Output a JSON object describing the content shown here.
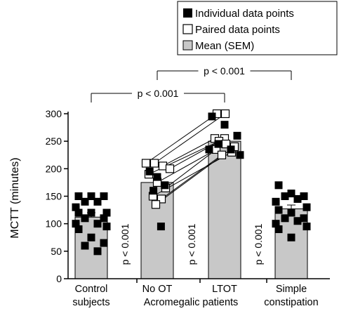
{
  "chart_data": {
    "type": "bar",
    "ylabel": "MCTT (minutes)",
    "ylim": [
      0,
      300
    ],
    "yticks": [
      0,
      50,
      100,
      150,
      200,
      250,
      300
    ],
    "grid": false,
    "categories": [
      {
        "line1": "Control",
        "line2": "subjects"
      },
      {
        "line1": "No OT",
        "line2": ""
      },
      {
        "line1": "LTOT",
        "line2": ""
      },
      {
        "line1": "Simple",
        "line2": "constipation"
      }
    ],
    "group_label": "Acromegalic patients",
    "legend": {
      "position": "top-right",
      "items": [
        {
          "label": "Individual data points",
          "marker": "filled-square"
        },
        {
          "label": "Paired data points",
          "marker": "open-square"
        },
        {
          "label": "Mean (SEM)",
          "marker": "grey-box"
        }
      ]
    },
    "bars": [
      {
        "category": "Control subjects",
        "mean": 112,
        "sem": 8
      },
      {
        "category": "No OT",
        "mean": 175,
        "sem": 8
      },
      {
        "category": "LTOT",
        "mean": 250,
        "sem": 10
      },
      {
        "category": "Simple constipation",
        "mean": 127,
        "sem": 7
      }
    ],
    "individual_points": [
      {
        "category_index": 0,
        "values": [
          150,
          150,
          150,
          140,
          140,
          130,
          120,
          120,
          120,
          110,
          110,
          100,
          100,
          95,
          90,
          75,
          65,
          60,
          50
        ]
      },
      {
        "category_index": 1,
        "values": [
          195,
          185,
          170,
          160,
          95
        ]
      },
      {
        "category_index": 2,
        "values": [
          295,
          280,
          260,
          245,
          235,
          235,
          225
        ]
      },
      {
        "category_index": 3,
        "values": [
          170,
          155,
          150,
          150,
          145,
          140,
          130,
          125,
          120,
          110,
          110,
          105,
          100,
          95,
          90,
          75
        ]
      }
    ],
    "paired_points": [
      {
        "no_ot": 210,
        "ltot": 300
      },
      {
        "no_ot": 210,
        "ltot": 300
      },
      {
        "no_ot": 205,
        "ltot": 255
      },
      {
        "no_ot": 200,
        "ltot": 255
      },
      {
        "no_ot": 190,
        "ltot": 250
      },
      {
        "no_ot": 175,
        "ltot": 245
      },
      {
        "no_ot": 165,
        "ltot": 235
      },
      {
        "no_ot": 150,
        "ltot": 230
      },
      {
        "no_ot": 145,
        "ltot": 225
      },
      {
        "no_ot": 135,
        "ltot": 240
      }
    ],
    "brackets": [
      {
        "label": "p < 0.001",
        "from_category": 0,
        "to_category": 2
      },
      {
        "label": "p < 0.001",
        "from_category": 1,
        "to_category": 3
      }
    ],
    "vertical_annotations": [
      {
        "label": "p < 0.001",
        "after_category": 0
      },
      {
        "label": "p < 0.001",
        "after_category": 1
      },
      {
        "label": "p < 0.001",
        "after_category": 2
      }
    ],
    "colors": {
      "bar_fill": "#c8c8c8",
      "marker_fill": "#000000",
      "open_marker_fill": "#ffffff",
      "axis": "#000000"
    }
  }
}
